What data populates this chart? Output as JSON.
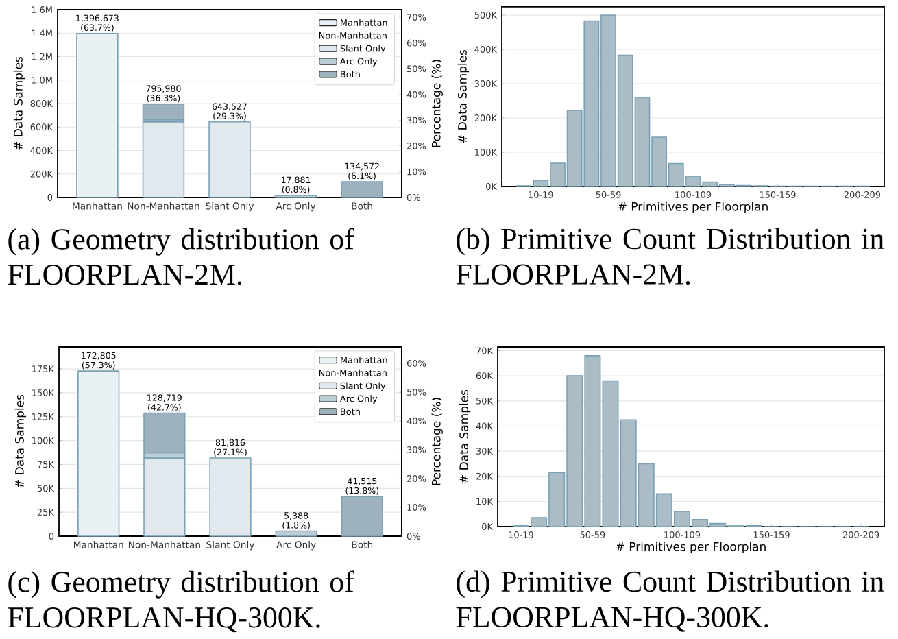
{
  "chart_data": [
    {
      "type": "bar",
      "stacked": true,
      "categories": [
        "Manhattan",
        "Non-Manhattan",
        "Slant Only",
        "Arc Only",
        "Both"
      ],
      "series": [
        {
          "name": "Manhattan",
          "color": "#eaf1f4",
          "values": [
            1396673,
            null,
            null,
            null,
            null
          ]
        },
        {
          "name": "Slant Only",
          "color": "#e1e9ee",
          "values": [
            null,
            643527,
            643527,
            null,
            null
          ]
        },
        {
          "name": "Arc Only",
          "color": "#bccdd6",
          "values": [
            null,
            17881,
            null,
            17881,
            null
          ]
        },
        {
          "name": "Both",
          "color": "#9db2bd",
          "values": [
            null,
            134572,
            null,
            null,
            134572
          ]
        }
      ],
      "totals": [
        "1,396,673 (63.7%)",
        "795,980 (36.3%)",
        "643,527 (29.3%)",
        "17,881 (0.8%)",
        "134,572 (6.1%)"
      ],
      "ylabel": "# Data Samples",
      "y2label": "Percentage (%)",
      "legend": "top right",
      "legend_title": "Non-Manhattan",
      "grid": "y",
      "ylim": [
        0,
        1600000
      ],
      "yticks": [
        {
          "value": 0,
          "label": "0"
        },
        {
          "value": 200000,
          "label": "200K"
        },
        {
          "value": 400000,
          "label": "400K"
        },
        {
          "value": 600000,
          "label": "600K"
        },
        {
          "value": 800000,
          "label": "800K"
        },
        {
          "value": 1000000,
          "label": "1.0M"
        },
        {
          "value": 1200000,
          "label": "1.2M"
        },
        {
          "value": 1400000,
          "label": "1.4M"
        },
        {
          "value": 1600000,
          "label": "1.6M"
        }
      ],
      "y2lim": [
        0,
        72.97
      ],
      "y2ticks": [
        {
          "value": 0,
          "label": "0%"
        },
        {
          "value": 10,
          "label": "10%"
        },
        {
          "value": 20,
          "label": "20%"
        },
        {
          "value": 30,
          "label": "30%"
        },
        {
          "value": 40,
          "label": "40%"
        },
        {
          "value": 50,
          "label": "50%"
        },
        {
          "value": 60,
          "label": "60%"
        },
        {
          "value": 70,
          "label": "70%"
        }
      ],
      "annotations": [
        "(a) Geometry distribution of FLOORPLAN-2M."
      ]
    },
    {
      "type": "bar",
      "categories": [
        null,
        "10-19",
        null,
        null,
        null,
        "50-59",
        null,
        null,
        null,
        null,
        "100-109",
        null,
        null,
        null,
        null,
        "150-159",
        null,
        null,
        null,
        null,
        "200-209"
      ],
      "values": [
        2000,
        18000,
        68000,
        222000,
        483000,
        500000,
        383000,
        260000,
        144000,
        67000,
        30000,
        13000,
        6000,
        3000,
        2000,
        1000,
        1000,
        1000,
        1000,
        1000,
        1000
      ],
      "color": "#aabdc7",
      "xlabel": "# Primitives per Floorplan",
      "ylabel": "# Data Samples",
      "grid": "y",
      "ylim": [
        0,
        524000
      ],
      "yticks": [
        {
          "value": 0,
          "label": "0K"
        },
        {
          "value": 100000,
          "label": "100K"
        },
        {
          "value": 200000,
          "label": "200K"
        },
        {
          "value": 300000,
          "label": "300K"
        },
        {
          "value": 400000,
          "label": "400K"
        },
        {
          "value": 500000,
          "label": "500K"
        }
      ],
      "annotations": [
        "(b) Primitive Count Distribution in FLOORPLAN-2M."
      ]
    },
    {
      "type": "bar",
      "stacked": true,
      "categories": [
        "Manhattan",
        "Non-Manhattan",
        "Slant Only",
        "Arc Only",
        "Both"
      ],
      "series": [
        {
          "name": "Manhattan",
          "color": "#eaf1f4",
          "values": [
            172805,
            null,
            null,
            null,
            null
          ]
        },
        {
          "name": "Slant Only",
          "color": "#e1e9ee",
          "values": [
            null,
            81816,
            81816,
            null,
            null
          ]
        },
        {
          "name": "Arc Only",
          "color": "#bccdd6",
          "values": [
            null,
            5388,
            null,
            5388,
            null
          ]
        },
        {
          "name": "Both",
          "color": "#9db2bd",
          "values": [
            null,
            41515,
            null,
            null,
            41515
          ]
        }
      ],
      "totals": [
        "172,805 (57.3%)",
        "128,719 (42.7%)",
        "81,816 (27.1%)",
        "5,388 (1.8%)",
        "41,515 (13.8%)"
      ],
      "ylabel": "# Data Samples",
      "y2label": "Percentage (%)",
      "legend": "top right",
      "legend_title": "Non-Manhattan",
      "grid": "y",
      "ylim": [
        0,
        198000
      ],
      "yticks": [
        {
          "value": 0,
          "label": "0"
        },
        {
          "value": 25000,
          "label": "25K"
        },
        {
          "value": 50000,
          "label": "50K"
        },
        {
          "value": 75000,
          "label": "75K"
        },
        {
          "value": 100000,
          "label": "100K"
        },
        {
          "value": 125000,
          "label": "125K"
        },
        {
          "value": 150000,
          "label": "150K"
        },
        {
          "value": 175000,
          "label": "175K"
        }
      ],
      "y2lim": [
        0,
        65.7
      ],
      "y2ticks": [
        {
          "value": 0,
          "label": "0%"
        },
        {
          "value": 10,
          "label": "10%"
        },
        {
          "value": 20,
          "label": "20%"
        },
        {
          "value": 30,
          "label": "30%"
        },
        {
          "value": 40,
          "label": "40%"
        },
        {
          "value": 50,
          "label": "50%"
        },
        {
          "value": 60,
          "label": "60%"
        }
      ],
      "annotations": [
        "(c) Geometry distribution of FLOORPLAN-HQ-300K."
      ]
    },
    {
      "type": "bar",
      "categories": [
        "10-19",
        null,
        null,
        null,
        "50-59",
        null,
        null,
        null,
        null,
        "100-109",
        null,
        null,
        null,
        null,
        "150-159",
        null,
        null,
        null,
        null,
        "200-209"
      ],
      "values": [
        500,
        3500,
        21500,
        60000,
        68000,
        58000,
        42500,
        25000,
        13000,
        6000,
        2800,
        1200,
        600,
        300,
        0,
        0,
        0,
        0,
        0,
        0
      ],
      "color": "#aabdc7",
      "xlabel": "# Primitives per Floorplan",
      "ylabel": "# Data Samples",
      "grid": "y",
      "ylim": [
        0,
        71500
      ],
      "yticks": [
        {
          "value": 0,
          "label": "0K"
        },
        {
          "value": 10000,
          "label": "10K"
        },
        {
          "value": 20000,
          "label": "20K"
        },
        {
          "value": 30000,
          "label": "30K"
        },
        {
          "value": 40000,
          "label": "40K"
        },
        {
          "value": 50000,
          "label": "50K"
        },
        {
          "value": 60000,
          "label": "60K"
        },
        {
          "value": 70000,
          "label": "70K"
        }
      ],
      "annotations": [
        "(d) Primitive Count Distribution in FLOORPLAN-HQ-300K."
      ]
    }
  ]
}
